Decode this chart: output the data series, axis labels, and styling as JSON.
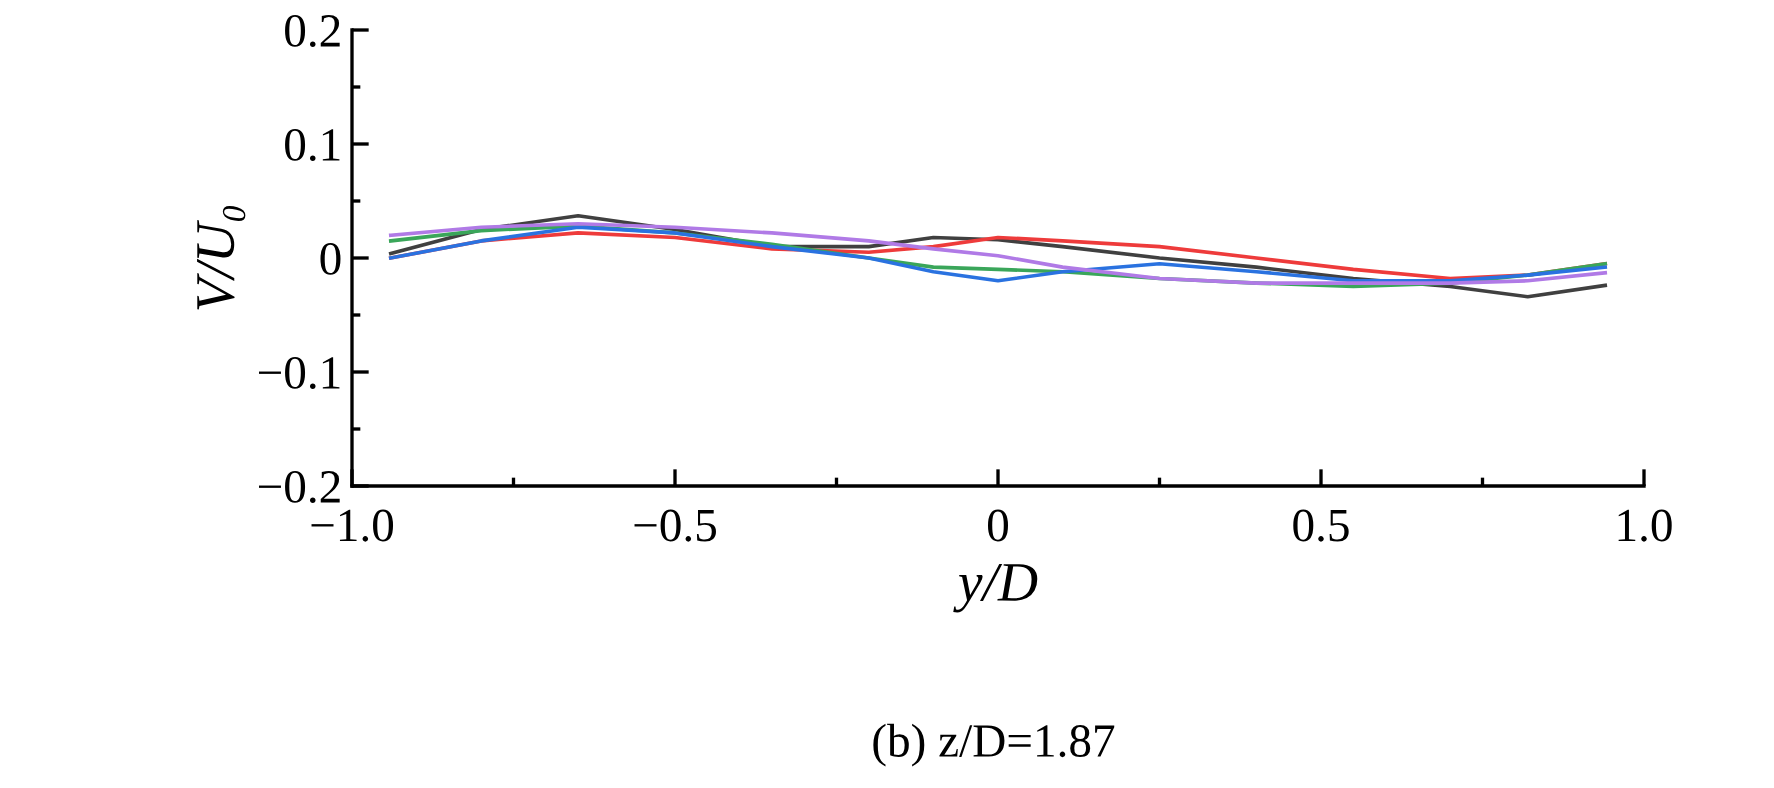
{
  "chart_data": {
    "type": "line",
    "xlabel": "y/D",
    "ylabel": "V/U₀",
    "annotations": [
      "(b) z/D=1.87"
    ],
    "x": [
      -0.94,
      -0.8,
      -0.65,
      -0.5,
      -0.35,
      -0.2,
      -0.1,
      0,
      0.1,
      0.25,
      0.4,
      0.55,
      0.7,
      0.82,
      0.94
    ],
    "series": [
      {
        "color": "#404040",
        "values": [
          0.004,
          0.025,
          0.037,
          0.025,
          0.01,
          0.01,
          0.018,
          0.016,
          0.01,
          0.0,
          -0.008,
          -0.018,
          -0.025,
          -0.034,
          -0.024
        ]
      },
      {
        "color": "#ee3b3b",
        "values": [
          0.0,
          0.015,
          0.022,
          0.018,
          0.008,
          0.005,
          0.01,
          0.018,
          0.015,
          0.01,
          0.0,
          -0.01,
          -0.018,
          -0.015,
          -0.005
        ]
      },
      {
        "color": "#3aa65a",
        "values": [
          0.015,
          0.024,
          0.028,
          0.022,
          0.012,
          0.0,
          -0.008,
          -0.01,
          -0.012,
          -0.018,
          -0.022,
          -0.025,
          -0.022,
          -0.015,
          -0.005
        ]
      },
      {
        "color": "#2a72e0",
        "values": [
          0.0,
          0.015,
          0.027,
          0.022,
          0.01,
          0.0,
          -0.012,
          -0.02,
          -0.012,
          -0.005,
          -0.012,
          -0.02,
          -0.02,
          -0.015,
          -0.008
        ]
      },
      {
        "color": "#b07ae6",
        "values": [
          0.02,
          0.027,
          0.03,
          0.027,
          0.022,
          0.015,
          0.008,
          0.002,
          -0.008,
          -0.018,
          -0.022,
          -0.022,
          -0.022,
          -0.02,
          -0.013
        ]
      }
    ],
    "xlim": [
      -1.0,
      1.0
    ],
    "ylim": [
      -0.2,
      0.2
    ],
    "xticks": [
      {
        "value": -1.0,
        "label": "−1.0"
      },
      {
        "value": -0.5,
        "label": "−0.5"
      },
      0,
      0.5,
      {
        "value": 1.0,
        "label": "1.0"
      }
    ],
    "yticks": [
      {
        "value": -0.2,
        "label": "−0.2"
      },
      {
        "value": -0.1,
        "label": "−0.1"
      },
      0,
      0.1,
      0.2
    ],
    "grid": false,
    "legend": false,
    "marker": "none",
    "line_style": "solid"
  }
}
